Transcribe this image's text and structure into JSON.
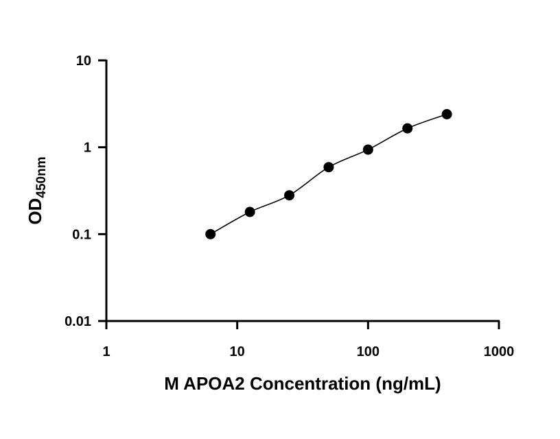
{
  "chart_data": {
    "type": "scatter",
    "title": "",
    "xlabel": "M APOA2 Concentration (ng/mL)",
    "ylabel": "OD",
    "ylabel_subscript": "450nm",
    "x_scale": "log",
    "y_scale": "log",
    "xlim": [
      1,
      1000
    ],
    "ylim": [
      0.01,
      10
    ],
    "x_ticks": [
      "1",
      "10",
      "100",
      "1000"
    ],
    "y_ticks": [
      "0.01",
      "0.1",
      "1",
      "10"
    ],
    "grid": false,
    "legend": "none",
    "series": [
      {
        "x": [
          6.25,
          12.5,
          25,
          50,
          100,
          200,
          400
        ],
        "y": [
          0.1,
          0.18,
          0.28,
          0.59,
          0.94,
          1.65,
          2.4
        ],
        "marker": "circle",
        "fit_curve": true
      }
    ],
    "colors": {
      "marker": "#000000",
      "line": "#000000"
    }
  }
}
